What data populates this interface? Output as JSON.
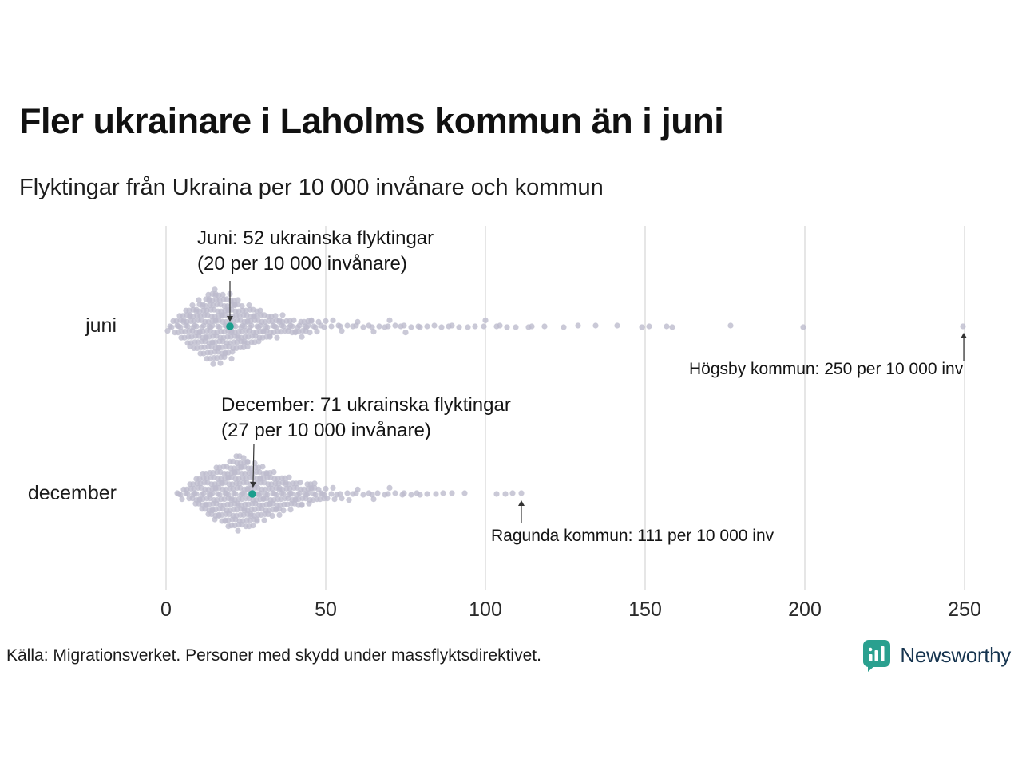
{
  "title": "Fler ukrainare i Laholms kommun än i juni",
  "subtitle": "Flyktingar från Ukraina per 10 000 invånare och kommun",
  "source": "Källa: Migrationsverket. Personer med skydd under massflyktsdirektivet.",
  "logo": {
    "text": "Newsworthy"
  },
  "colors": {
    "dot": "#bdbccd",
    "highlight": "#1b9e8d",
    "grid": "#cccccc",
    "arrow": "#333333",
    "logo_teal": "#2aa08f",
    "logo_text": "#16344f"
  },
  "chart_data": {
    "type": "beeswarm",
    "xlabel": "Flyktingar från Ukraina per 10 000 invånare",
    "x_ticks": [
      0,
      50,
      100,
      150,
      200,
      250
    ],
    "xlim": [
      0,
      250
    ],
    "grid": true,
    "rows": [
      "juni",
      "december"
    ],
    "series": [
      {
        "name": "juni",
        "highlight": {
          "value": 20,
          "annotation_line1": "Juni: 52 ukrainska flyktingar",
          "annotation_line2": "(20 per 10 000 invånare)"
        },
        "callout": {
          "value": 250,
          "label": "Högsby kommun: 250 per 10 000 inv"
        },
        "points": [
          [
            1,
            2
          ],
          [
            2,
            2
          ],
          [
            3,
            3
          ],
          [
            4,
            4
          ],
          [
            5,
            5
          ],
          [
            6,
            6
          ],
          [
            7,
            7
          ],
          [
            8,
            9
          ],
          [
            9,
            8
          ],
          [
            10,
            10
          ],
          [
            11,
            10
          ],
          [
            12,
            11
          ],
          [
            13,
            13
          ],
          [
            14,
            13
          ],
          [
            15,
            15
          ],
          [
            16,
            13
          ],
          [
            17,
            14
          ],
          [
            18,
            13
          ],
          [
            19,
            11
          ],
          [
            20,
            13
          ],
          [
            21,
            11
          ],
          [
            22,
            10
          ],
          [
            23,
            9
          ],
          [
            24,
            9
          ],
          [
            25,
            8
          ],
          [
            26,
            8
          ],
          [
            27,
            7
          ],
          [
            28,
            7
          ],
          [
            29,
            6
          ],
          [
            30,
            6
          ],
          [
            31,
            5
          ],
          [
            32,
            5
          ],
          [
            33,
            5
          ],
          [
            34,
            4
          ],
          [
            35,
            4
          ],
          [
            36,
            4
          ],
          [
            37,
            3
          ],
          [
            38,
            3
          ],
          [
            39,
            3
          ],
          [
            40,
            3
          ],
          [
            41,
            2
          ],
          [
            42,
            3
          ],
          [
            43,
            4
          ],
          [
            44,
            3
          ],
          [
            45,
            3
          ],
          [
            46,
            2
          ],
          [
            47,
            2
          ],
          [
            48,
            2
          ],
          [
            50,
            2
          ],
          [
            52,
            2
          ],
          [
            54,
            1
          ],
          [
            55,
            2
          ],
          [
            57,
            1
          ],
          [
            58,
            1
          ],
          [
            60,
            2
          ],
          [
            62,
            1
          ],
          [
            63,
            1
          ],
          [
            65,
            2
          ],
          [
            67,
            1
          ],
          [
            68,
            1
          ],
          [
            70,
            2
          ],
          [
            72,
            1
          ],
          [
            73,
            1
          ],
          [
            75,
            2
          ],
          [
            77,
            1
          ],
          [
            79,
            1
          ],
          [
            80,
            1
          ],
          [
            82,
            1
          ],
          [
            84,
            1
          ],
          [
            86,
            1
          ],
          [
            88,
            1
          ],
          [
            90,
            1
          ],
          [
            92,
            1
          ],
          [
            95,
            1
          ],
          [
            97,
            1
          ],
          [
            100,
            2
          ],
          [
            103,
            1
          ],
          [
            105,
            1
          ],
          [
            107,
            1
          ],
          [
            110,
            1
          ],
          [
            113,
            1
          ],
          [
            115,
            1
          ],
          [
            118,
            1
          ],
          [
            125,
            1
          ],
          [
            129,
            1
          ],
          [
            135,
            1
          ],
          [
            141,
            1
          ],
          [
            149,
            1
          ],
          [
            151,
            1
          ],
          [
            157,
            1
          ],
          [
            158,
            1
          ],
          [
            177,
            1
          ],
          [
            200,
            1
          ],
          [
            250,
            1
          ]
        ]
      },
      {
        "name": "december",
        "highlight": {
          "value": 27,
          "annotation_line1": "December: 71 ukrainska flyktingar",
          "annotation_line2": "(27 per 10 000 invånare)"
        },
        "callout": {
          "value": 111,
          "label": "Ragunda kommun: 111 per 10 000 inv"
        },
        "points": [
          [
            3,
            1
          ],
          [
            4,
            1
          ],
          [
            5,
            2
          ],
          [
            6,
            2
          ],
          [
            7,
            3
          ],
          [
            8,
            4
          ],
          [
            9,
            5
          ],
          [
            10,
            6
          ],
          [
            11,
            7
          ],
          [
            12,
            8
          ],
          [
            13,
            9
          ],
          [
            14,
            9
          ],
          [
            15,
            10
          ],
          [
            16,
            10
          ],
          [
            17,
            11
          ],
          [
            18,
            11
          ],
          [
            19,
            12
          ],
          [
            20,
            12
          ],
          [
            21,
            13
          ],
          [
            22,
            14
          ],
          [
            23,
            15
          ],
          [
            24,
            14
          ],
          [
            25,
            13
          ],
          [
            26,
            13
          ],
          [
            27,
            12
          ],
          [
            28,
            12
          ],
          [
            29,
            11
          ],
          [
            30,
            10
          ],
          [
            31,
            10
          ],
          [
            32,
            9
          ],
          [
            33,
            9
          ],
          [
            34,
            8
          ],
          [
            35,
            8
          ],
          [
            36,
            7
          ],
          [
            37,
            7
          ],
          [
            38,
            6
          ],
          [
            39,
            6
          ],
          [
            40,
            5
          ],
          [
            41,
            5
          ],
          [
            42,
            5
          ],
          [
            43,
            4
          ],
          [
            44,
            4
          ],
          [
            45,
            5
          ],
          [
            46,
            4
          ],
          [
            47,
            3
          ],
          [
            48,
            3
          ],
          [
            49,
            2
          ],
          [
            50,
            3
          ],
          [
            52,
            2
          ],
          [
            53,
            2
          ],
          [
            55,
            2
          ],
          [
            57,
            2
          ],
          [
            58,
            1
          ],
          [
            60,
            2
          ],
          [
            62,
            1
          ],
          [
            63,
            1
          ],
          [
            65,
            2
          ],
          [
            66,
            1
          ],
          [
            68,
            1
          ],
          [
            70,
            2
          ],
          [
            72,
            1
          ],
          [
            74,
            1
          ],
          [
            75,
            1
          ],
          [
            77,
            1
          ],
          [
            78,
            1
          ],
          [
            80,
            1
          ],
          [
            82,
            1
          ],
          [
            85,
            1
          ],
          [
            87,
            1
          ],
          [
            90,
            1
          ],
          [
            93,
            1
          ],
          [
            103,
            1
          ],
          [
            106,
            1
          ],
          [
            108,
            1
          ],
          [
            111,
            1
          ]
        ]
      }
    ]
  }
}
